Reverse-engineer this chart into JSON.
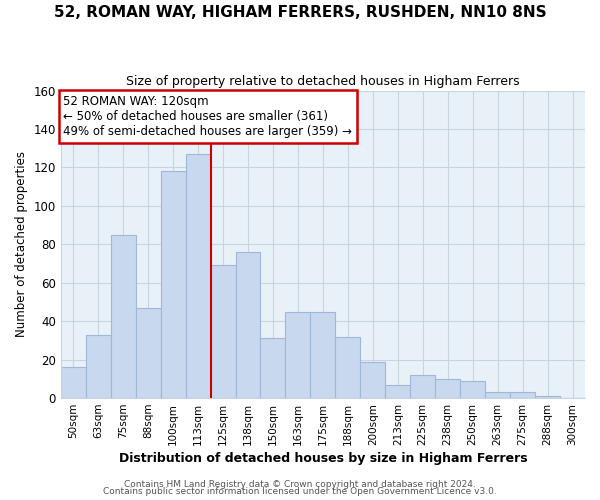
{
  "title": "52, ROMAN WAY, HIGHAM FERRERS, RUSHDEN, NN10 8NS",
  "subtitle": "Size of property relative to detached houses in Higham Ferrers",
  "xlabel": "Distribution of detached houses by size in Higham Ferrers",
  "ylabel": "Number of detached properties",
  "footer_line1": "Contains HM Land Registry data © Crown copyright and database right 2024.",
  "footer_line2": "Contains public sector information licensed under the Open Government Licence v3.0.",
  "annotation_title": "52 ROMAN WAY: 120sqm",
  "annotation_line1": "← 50% of detached houses are smaller (361)",
  "annotation_line2": "49% of semi-detached houses are larger (359) →",
  "bar_labels": [
    "50sqm",
    "63sqm",
    "75sqm",
    "88sqm",
    "100sqm",
    "113sqm",
    "125sqm",
    "138sqm",
    "150sqm",
    "163sqm",
    "175sqm",
    "188sqm",
    "200sqm",
    "213sqm",
    "225sqm",
    "238sqm",
    "250sqm",
    "263sqm",
    "275sqm",
    "288sqm",
    "300sqm"
  ],
  "bar_values": [
    16,
    33,
    85,
    47,
    118,
    127,
    69,
    76,
    31,
    45,
    45,
    32,
    19,
    7,
    12,
    10,
    9,
    3,
    3,
    1,
    0
  ],
  "bar_color": "#c8d8ee",
  "bar_edge_color": "#a0b8d8",
  "vline_color": "#cc0000",
  "ylim": [
    0,
    160
  ],
  "yticks": [
    0,
    20,
    40,
    60,
    80,
    100,
    120,
    140,
    160
  ],
  "grid_color": "#c8d4e0",
  "bg_color": "#e8f0f8",
  "box_edge_color": "#cc0000",
  "title_fontsize": 11,
  "subtitle_fontsize": 9
}
